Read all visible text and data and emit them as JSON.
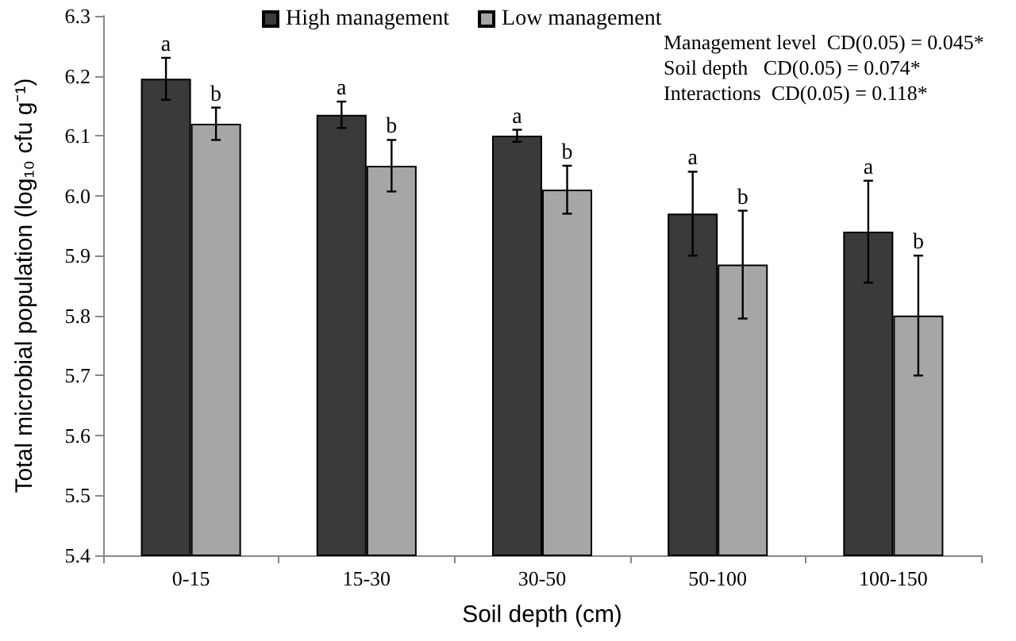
{
  "chart_data": {
    "type": "bar",
    "xlabel": "Soil depth (cm)",
    "ylabel": "Total microbial population (log₁₀ cfu g⁻¹)",
    "categories": [
      "0-15",
      "15-30",
      "30-50",
      "50-100",
      "100-150"
    ],
    "series": [
      {
        "name": "High management",
        "color": "#3a3a3a",
        "values": [
          6.195,
          6.135,
          6.1,
          5.97,
          5.94
        ],
        "errors": [
          0.035,
          0.022,
          0.01,
          0.07,
          0.085
        ]
      },
      {
        "name": "Low management",
        "color": "#a6a6a6",
        "values": [
          6.12,
          6.05,
          6.01,
          5.885,
          5.8
        ],
        "errors": [
          0.027,
          0.043,
          0.04,
          0.09,
          0.1
        ]
      }
    ],
    "ylim": [
      5.4,
      6.3
    ],
    "yticks": [
      5.4,
      5.5,
      5.6,
      5.7,
      5.8,
      5.9,
      {
        "value": 6,
        "label": "6.0"
      },
      6.1,
      6.2,
      6.3
    ],
    "grid": false,
    "legend": "top",
    "annotations": [
      {
        "text": "a",
        "x": "0-15",
        "y": 6.195
      },
      {
        "text": "b",
        "x": "0-15",
        "y": 6.12
      },
      {
        "text": "a",
        "x": "15-30",
        "y": 6.135
      },
      {
        "text": "b",
        "x": "15-30",
        "y": 6.05
      },
      {
        "text": "a",
        "x": "30-50",
        "y": 6.1
      },
      {
        "text": "b",
        "x": "30-50",
        "y": 6.01
      },
      {
        "text": "a",
        "x": "50-100",
        "y": 5.97
      },
      {
        "text": "b",
        "x": "50-100",
        "y": 5.885
      },
      {
        "text": "a",
        "x": "100-150",
        "y": 5.94
      },
      {
        "text": "b",
        "x": "100-150",
        "y": 5.8
      },
      "Management level  CD(0.05) = 0.045*",
      "Soil depth   CD(0.05) = 0.074*",
      "Interactions  CD(0.05) = 0.118*"
    ]
  }
}
